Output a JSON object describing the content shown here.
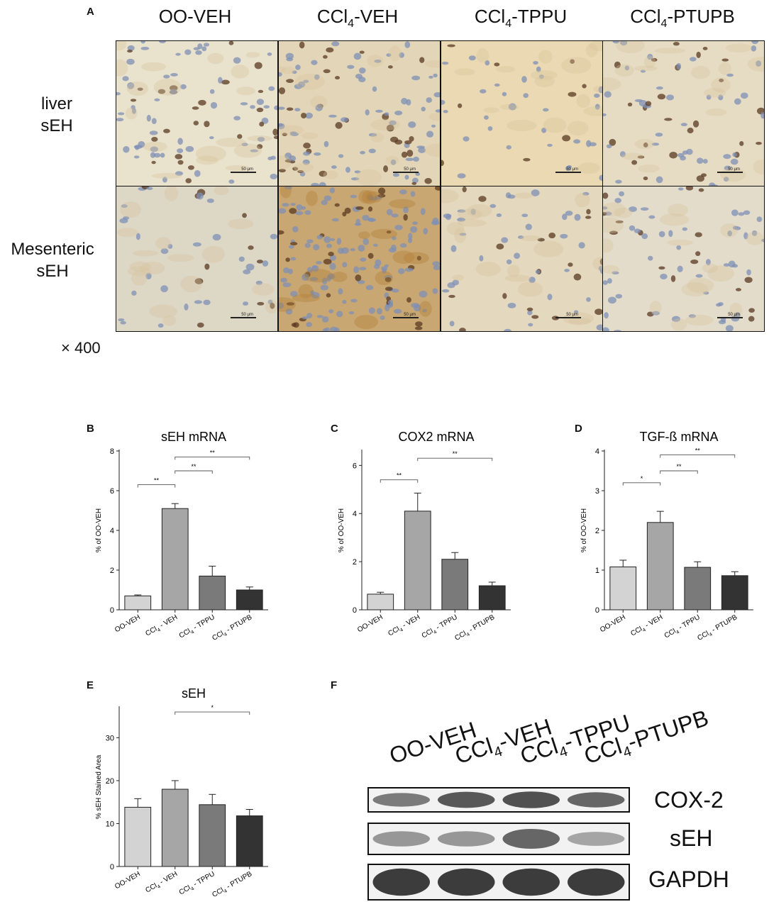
{
  "panel_a": {
    "letter": "A",
    "columns": [
      {
        "id": "oo-veh",
        "text": "OO-VEH",
        "sub": ""
      },
      {
        "id": "ccl4-veh",
        "text": "CCl",
        "sub": "4",
        "tail": "-VEH"
      },
      {
        "id": "ccl4-tppu",
        "text": "CCl",
        "sub": "4",
        "tail": "-TPPU"
      },
      {
        "id": "ccl4-ptupb",
        "text": "CCl",
        "sub": "4",
        "tail": "-PTUPB"
      }
    ],
    "rows": [
      {
        "line1": "liver",
        "line2": "sEH"
      },
      {
        "line1": "Mesenteric",
        "line2": "sEH"
      }
    ],
    "magnification": "× 400",
    "scale_bar_label": "50 μm"
  },
  "chart_data": [
    {
      "panel": "B",
      "type": "bar",
      "title": "sEH  mRNA",
      "ylabel": "% of OO-VEH",
      "categories": [
        "OO-VEH",
        "CCl4 - VEH",
        "CCl4 - TPPU",
        "CCl4 - PTUPB"
      ],
      "values": [
        0.7,
        5.1,
        1.7,
        1.0
      ],
      "errors": [
        0.05,
        0.25,
        0.5,
        0.15
      ],
      "ylim": [
        0,
        8
      ],
      "yticks": [
        0,
        2,
        4,
        6,
        8
      ],
      "colors": [
        "#d3d3d3",
        "#a6a6a6",
        "#7a7a7a",
        "#333333"
      ],
      "significance": [
        {
          "from": 0,
          "to": 1,
          "y": 6.3,
          "label": "**"
        },
        {
          "from": 1,
          "to": 2,
          "y": 7.0,
          "label": "**"
        },
        {
          "from": 1,
          "to": 3,
          "y": 7.7,
          "label": "**"
        }
      ]
    },
    {
      "panel": "C",
      "type": "bar",
      "title": "COX2  mRNA",
      "ylabel": "% of OO-VEH",
      "categories": [
        "OO-VEH",
        "CCl4 - VEH",
        "CCl4 - TPPU",
        "CCl4 - PTUPB"
      ],
      "values": [
        0.65,
        4.1,
        2.1,
        1.0
      ],
      "errors": [
        0.08,
        0.75,
        0.28,
        0.15
      ],
      "ylim": [
        0,
        6.6
      ],
      "yticks": [
        0,
        2,
        4,
        6
      ],
      "colors": [
        "#d3d3d3",
        "#a6a6a6",
        "#7a7a7a",
        "#333333"
      ],
      "significance": [
        {
          "from": 0,
          "to": 1,
          "y": 5.4,
          "label": "**"
        },
        {
          "from": 1,
          "to": 3,
          "y": 6.3,
          "label": "**"
        }
      ]
    },
    {
      "panel": "D",
      "type": "bar",
      "title": "TGF-ß mRNA",
      "ylabel": "% of OO-VEH",
      "categories": [
        "OO-VEH",
        "CCl4 - VEH",
        "CCl4 - TPPU",
        "CCl4 - PTUPB"
      ],
      "values": [
        1.08,
        2.2,
        1.07,
        0.86
      ],
      "errors": [
        0.17,
        0.28,
        0.14,
        0.1
      ],
      "ylim": [
        0,
        4
      ],
      "yticks": [
        0,
        1,
        2,
        3,
        4
      ],
      "colors": [
        "#d3d3d3",
        "#a6a6a6",
        "#7a7a7a",
        "#333333"
      ],
      "significance": [
        {
          "from": 0,
          "to": 1,
          "y": 3.2,
          "label": "*"
        },
        {
          "from": 1,
          "to": 2,
          "y": 3.5,
          "label": "**"
        },
        {
          "from": 1,
          "to": 3,
          "y": 3.9,
          "label": "**"
        }
      ]
    },
    {
      "panel": "E",
      "type": "bar",
      "title": "sEH",
      "ylabel": "% sEH Stained Area",
      "categories": [
        "OO-VEH",
        "CCl4 - VEH",
        "CCl4 - TPPU",
        "CCl4 - PTUPB"
      ],
      "values": [
        13.8,
        18.0,
        14.4,
        11.8
      ],
      "errors": [
        2.0,
        2.0,
        2.4,
        1.5
      ],
      "ylim": [
        0,
        37
      ],
      "yticks": [
        0,
        10,
        20,
        30
      ],
      "colors": [
        "#d3d3d3",
        "#a6a6a6",
        "#7a7a7a",
        "#333333"
      ],
      "significance": [
        {
          "from": 1,
          "to": 3,
          "y": 36,
          "label": "*"
        }
      ]
    }
  ],
  "panel_f": {
    "letter": "F",
    "columns": [
      {
        "text": "OO-VEH",
        "sub": "",
        "tail": ""
      },
      {
        "text": "CCl",
        "sub": "4",
        "tail": "-VEH"
      },
      {
        "text": "CCl",
        "sub": "4",
        "tail": "-TPPU"
      },
      {
        "text": "CCl",
        "sub": "4",
        "tail": "-PTUPB"
      }
    ],
    "blots": [
      {
        "label": "COX-2",
        "intensity": [
          0.55,
          0.8,
          0.85,
          0.7
        ]
      },
      {
        "label": "sEH",
        "intensity": [
          0.35,
          0.35,
          0.7,
          0.25
        ]
      },
      {
        "label": "GAPDH",
        "intensity": [
          1.0,
          1.0,
          1.0,
          1.0
        ]
      }
    ]
  }
}
